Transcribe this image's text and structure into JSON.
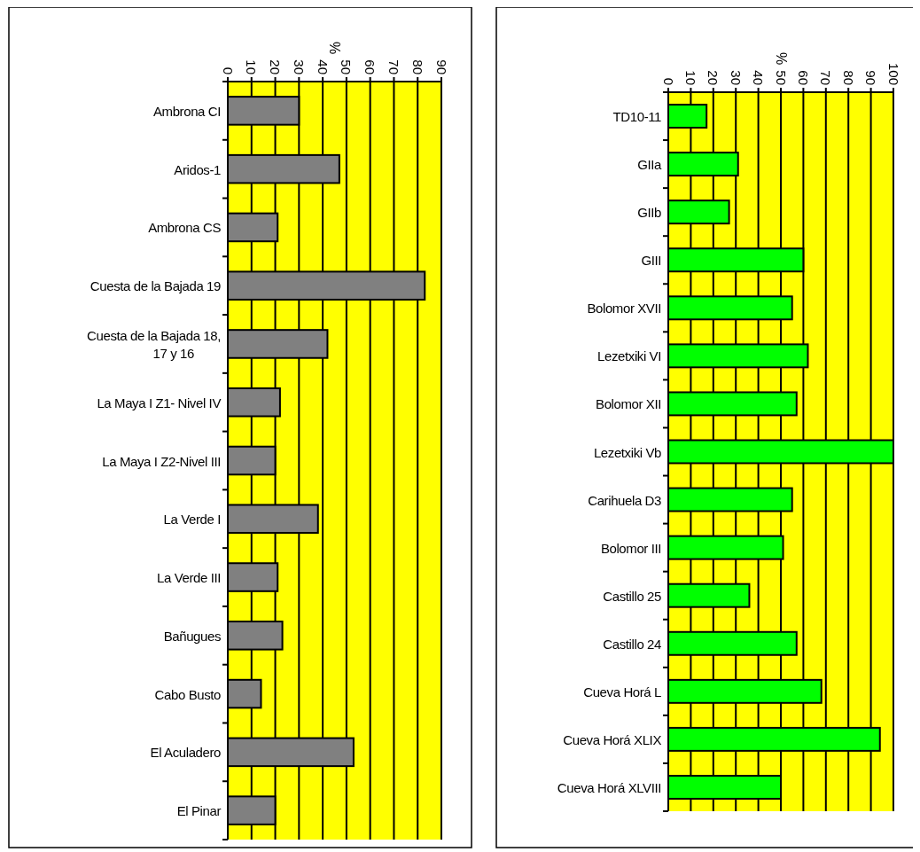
{
  "chart_data": [
    {
      "type": "bar",
      "orientation": "horizontal",
      "x2label": "%",
      "categories": [
        "Ambrona CI",
        "Aridos-1",
        "Ambrona CS",
        "Cuesta de la Bajada 19",
        "Cuesta de la Bajada 18, 17 y 16",
        "La Maya I Z1- Nivel IV",
        "La Maya I Z2-Nivel III",
        "La Verde I",
        "La Verde III",
        "Bañugues",
        "Cabo Busto",
        "El Aculadero",
        "El Pinar"
      ],
      "series": [
        {
          "axis": "x2",
          "color": "#808080",
          "values": [
            30,
            47,
            21,
            83,
            42,
            22,
            20,
            38,
            21,
            23,
            14,
            53,
            20
          ]
        }
      ],
      "x2lim": [
        0,
        90
      ],
      "x2ticks": [
        0,
        10,
        20,
        30,
        40,
        50,
        60,
        70,
        80,
        90
      ],
      "grid": "x"
    },
    {
      "type": "bar",
      "orientation": "horizontal",
      "x2label": "%",
      "categories": [
        "TD10-11",
        "GIIa",
        "GIIb",
        "GIII",
        "Bolomor XVII",
        "Lezetxiki VI",
        "Bolomor XII",
        "Lezetxiki Vb",
        "Carihuela D3",
        "Bolomor III",
        "Castillo 25",
        "Castillo 24",
        "Cueva Horá L",
        "Cueva Horá XLIX",
        "Cueva Horá XLVIII"
      ],
      "series": [
        {
          "axis": "x2",
          "color": "#00ff00",
          "values": [
            17,
            31,
            27,
            60,
            55,
            62,
            57,
            100,
            55,
            51,
            36,
            57,
            68,
            94,
            50
          ]
        }
      ],
      "x2lim": [
        0,
        100
      ],
      "x2ticks": [
        0,
        10,
        20,
        30,
        40,
        50,
        60,
        70,
        80,
        90,
        100
      ],
      "grid": "x"
    }
  ]
}
